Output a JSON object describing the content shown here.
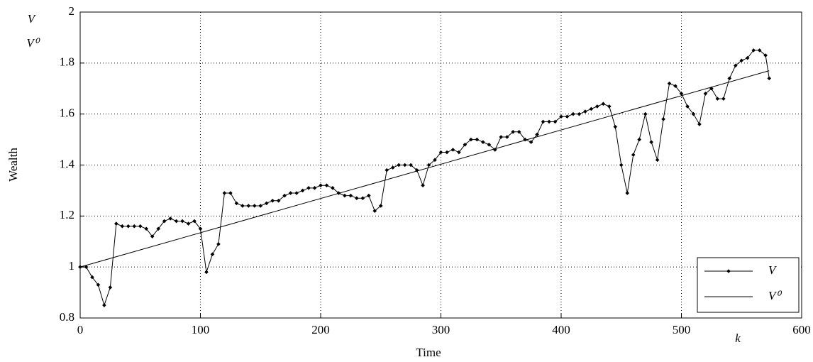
{
  "chart_data": {
    "type": "line",
    "xlabel": "Time",
    "ylabel": "Wealth",
    "annotations": [
      "V",
      "V⁰",
      "k"
    ],
    "xlim": [
      0,
      600
    ],
    "xticks": [
      0,
      100,
      200,
      300,
      400,
      500,
      600
    ],
    "ylim": [
      0.8,
      2
    ],
    "yticks": [
      0.8,
      1,
      1.2,
      1.4,
      1.6,
      1.8,
      2
    ],
    "grid": true,
    "legend": "lower right",
    "series": [
      {
        "name": "V",
        "color": "#000000",
        "marker": "diamond",
        "x": [
          0,
          5,
          10,
          15,
          20,
          25,
          30,
          35,
          40,
          45,
          50,
          55,
          60,
          65,
          70,
          75,
          80,
          85,
          90,
          95,
          100,
          105,
          110,
          115,
          120,
          125,
          130,
          135,
          140,
          145,
          150,
          155,
          160,
          165,
          170,
          175,
          180,
          185,
          190,
          195,
          200,
          205,
          210,
          215,
          220,
          225,
          230,
          235,
          240,
          245,
          250,
          255,
          260,
          265,
          270,
          275,
          280,
          285,
          290,
          295,
          300,
          305,
          310,
          315,
          320,
          325,
          330,
          335,
          340,
          345,
          350,
          355,
          360,
          365,
          370,
          375,
          380,
          385,
          390,
          395,
          400,
          405,
          410,
          415,
          420,
          425,
          430,
          435,
          440,
          445,
          450,
          455,
          460,
          465,
          470,
          475,
          480,
          485,
          490,
          495,
          500,
          505,
          510,
          515,
          520,
          525,
          530,
          535,
          540,
          545,
          550,
          555,
          560,
          565,
          570,
          573
        ],
        "values": [
          1.0,
          1.0,
          0.96,
          0.93,
          0.85,
          0.92,
          1.17,
          1.16,
          1.16,
          1.16,
          1.16,
          1.15,
          1.12,
          1.15,
          1.18,
          1.19,
          1.18,
          1.18,
          1.17,
          1.18,
          1.15,
          0.98,
          1.05,
          1.09,
          1.29,
          1.29,
          1.25,
          1.24,
          1.24,
          1.24,
          1.24,
          1.25,
          1.26,
          1.26,
          1.28,
          1.29,
          1.29,
          1.3,
          1.31,
          1.31,
          1.32,
          1.32,
          1.31,
          1.29,
          1.28,
          1.28,
          1.27,
          1.27,
          1.28,
          1.22,
          1.24,
          1.38,
          1.39,
          1.4,
          1.4,
          1.4,
          1.38,
          1.32,
          1.4,
          1.42,
          1.45,
          1.45,
          1.46,
          1.45,
          1.48,
          1.5,
          1.5,
          1.49,
          1.48,
          1.46,
          1.51,
          1.51,
          1.53,
          1.53,
          1.5,
          1.49,
          1.52,
          1.57,
          1.57,
          1.57,
          1.59,
          1.59,
          1.6,
          1.6,
          1.61,
          1.62,
          1.63,
          1.64,
          1.63,
          1.55,
          1.4,
          1.29,
          1.44,
          1.5,
          1.6,
          1.49,
          1.42,
          1.58,
          1.72,
          1.71,
          1.68,
          1.63,
          1.6,
          1.56,
          1.68,
          1.7,
          1.66,
          1.66,
          1.74,
          1.79,
          1.81,
          1.82,
          1.85,
          1.85,
          1.83,
          1.74
        ]
      },
      {
        "name": "V⁰",
        "color": "#000000",
        "marker": "none",
        "x": [
          0,
          573
        ],
        "values": [
          1.0,
          1.77
        ]
      }
    ]
  }
}
